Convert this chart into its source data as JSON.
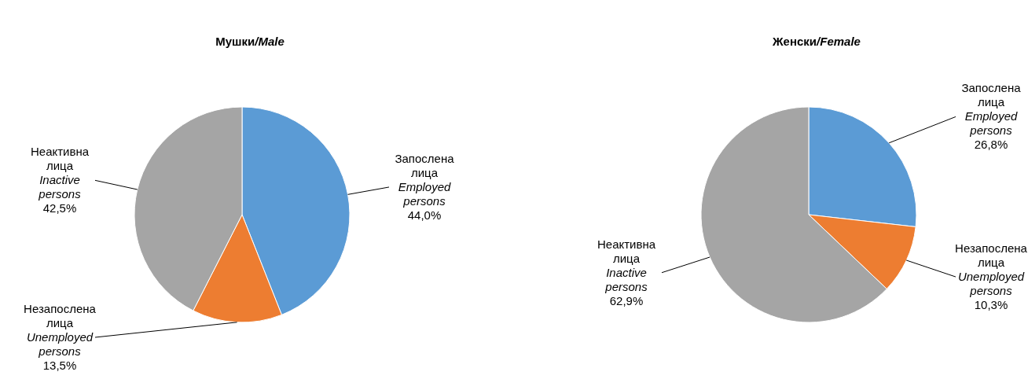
{
  "chart_data": [
    {
      "type": "pie",
      "title": "Мушки/Male",
      "categories": [
        "Запослена лица\nEmployed persons",
        "Незапослена лица\nUnemployed persons",
        "Неактивна лица\nInactive persons"
      ],
      "values": [
        44.0,
        13.5,
        42.5
      ],
      "value_labels": [
        "44,0%",
        "13,5%",
        "42,5%"
      ],
      "colors": [
        "#5b9bd5",
        "#ed7d31",
        "#a5a5a5"
      ]
    },
    {
      "type": "pie",
      "title": "Женски/Female",
      "categories": [
        "Запослена лица\nEmployed persons",
        "Незапослена лица\nUnemployed persons",
        "Неактивна лица\nInactive persons"
      ],
      "values": [
        26.8,
        10.3,
        62.9
      ],
      "value_labels": [
        "26,8%",
        "10,3%",
        "62,9%"
      ],
      "colors": [
        "#5b9bd5",
        "#ed7d31",
        "#a5a5a5"
      ]
    }
  ]
}
